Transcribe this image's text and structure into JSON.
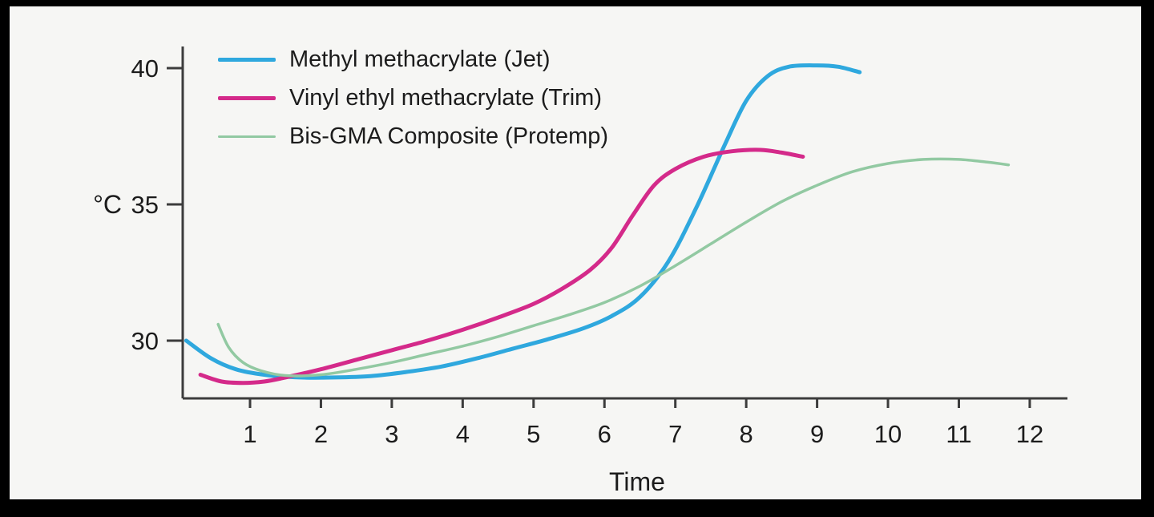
{
  "colors": {
    "axis": "#3c3c3c",
    "text": "#1c1c1c",
    "background": "#f6f6f4",
    "frame": "#000000"
  },
  "chart_data": {
    "type": "line",
    "title": "",
    "xlabel": "Time",
    "ylabel": "°C",
    "grid": false,
    "legend_position": "top-left",
    "xlim": [
      0,
      12.45
    ],
    "ylim": [
      27.9,
      40.9
    ],
    "x_ticks": [
      1,
      2,
      3,
      4,
      5,
      6,
      7,
      8,
      9,
      10,
      11,
      12
    ],
    "y_ticks": [
      30,
      35,
      40
    ],
    "series": [
      {
        "name": "Methyl methacrylate (Jet)",
        "color": "#2fa8de",
        "width": 5,
        "points": [
          [
            0.1,
            30.0
          ],
          [
            0.45,
            29.35
          ],
          [
            0.8,
            28.95
          ],
          [
            1.2,
            28.75
          ],
          [
            1.7,
            28.65
          ],
          [
            2.2,
            28.65
          ],
          [
            2.7,
            28.7
          ],
          [
            3.2,
            28.85
          ],
          [
            3.7,
            29.05
          ],
          [
            4.2,
            29.35
          ],
          [
            4.7,
            29.7
          ],
          [
            5.2,
            30.05
          ],
          [
            5.7,
            30.45
          ],
          [
            6.1,
            30.9
          ],
          [
            6.5,
            31.6
          ],
          [
            6.9,
            32.9
          ],
          [
            7.3,
            34.9
          ],
          [
            7.7,
            37.2
          ],
          [
            8.0,
            38.8
          ],
          [
            8.3,
            39.7
          ],
          [
            8.6,
            40.05
          ],
          [
            9.0,
            40.1
          ],
          [
            9.3,
            40.05
          ],
          [
            9.6,
            39.85
          ]
        ]
      },
      {
        "name": "Vinyl ethyl methacrylate (Trim)",
        "color": "#d42a8a",
        "width": 5,
        "points": [
          [
            0.3,
            28.75
          ],
          [
            0.6,
            28.5
          ],
          [
            0.9,
            28.45
          ],
          [
            1.2,
            28.5
          ],
          [
            1.5,
            28.65
          ],
          [
            2.0,
            28.95
          ],
          [
            2.5,
            29.3
          ],
          [
            3.0,
            29.65
          ],
          [
            3.5,
            30.0
          ],
          [
            4.0,
            30.4
          ],
          [
            4.5,
            30.85
          ],
          [
            5.0,
            31.35
          ],
          [
            5.4,
            31.9
          ],
          [
            5.8,
            32.6
          ],
          [
            6.1,
            33.4
          ],
          [
            6.4,
            34.6
          ],
          [
            6.7,
            35.7
          ],
          [
            7.0,
            36.3
          ],
          [
            7.4,
            36.75
          ],
          [
            7.8,
            36.95
          ],
          [
            8.2,
            37.0
          ],
          [
            8.5,
            36.9
          ],
          [
            8.8,
            36.75
          ]
        ]
      },
      {
        "name": "Bis-GMA Composite (Protemp)",
        "color": "#92c9a2",
        "width": 3.5,
        "points": [
          [
            0.55,
            30.6
          ],
          [
            0.7,
            29.75
          ],
          [
            0.9,
            29.2
          ],
          [
            1.15,
            28.9
          ],
          [
            1.5,
            28.72
          ],
          [
            2.0,
            28.75
          ],
          [
            2.5,
            28.95
          ],
          [
            3.0,
            29.2
          ],
          [
            3.5,
            29.5
          ],
          [
            4.0,
            29.8
          ],
          [
            4.5,
            30.15
          ],
          [
            5.0,
            30.55
          ],
          [
            5.5,
            30.95
          ],
          [
            6.0,
            31.4
          ],
          [
            6.5,
            32.0
          ],
          [
            7.0,
            32.75
          ],
          [
            7.5,
            33.55
          ],
          [
            8.0,
            34.35
          ],
          [
            8.5,
            35.1
          ],
          [
            9.0,
            35.7
          ],
          [
            9.5,
            36.2
          ],
          [
            10.0,
            36.5
          ],
          [
            10.5,
            36.65
          ],
          [
            11.0,
            36.65
          ],
          [
            11.4,
            36.55
          ],
          [
            11.7,
            36.45
          ]
        ]
      }
    ]
  }
}
